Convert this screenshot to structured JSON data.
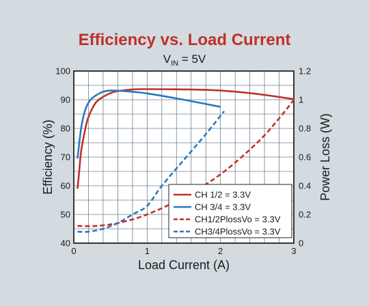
{
  "chart_data": {
    "type": "line",
    "title": "Efficiency vs. Load Current",
    "subtitle_main": "V",
    "subtitle_sub": "IN",
    "subtitle_rest": " = 5V",
    "xlabel": "Load Current (A)",
    "ylabel_left": "Efficiency (%)",
    "ylabel_right": "Power Loss (W)",
    "xlim": [
      0,
      3
    ],
    "ylim_left": [
      40,
      100
    ],
    "ylim_right": [
      0,
      1.2
    ],
    "x_ticks": [
      "0",
      "1",
      "2",
      "3"
    ],
    "y_left_ticks": [
      "40",
      "50",
      "60",
      "70",
      "80",
      "90",
      "100"
    ],
    "y_right_ticks": [
      "0",
      "0.2",
      "0.4",
      "0.6",
      "0.8",
      "1",
      "1.2"
    ],
    "grid": true,
    "legend_position": "bottom-right",
    "colors": {
      "red": "#c0302a",
      "blue": "#2a78bd",
      "title": "#c0302a"
    },
    "series": [
      {
        "name": "CH 1/2 = 3.3V",
        "axis": "left",
        "color": "#c0302a",
        "style": "solid",
        "points": [
          [
            0.05,
            59
          ],
          [
            0.07,
            64
          ],
          [
            0.1,
            72
          ],
          [
            0.15,
            79
          ],
          [
            0.2,
            84
          ],
          [
            0.3,
            89
          ],
          [
            0.4,
            91
          ],
          [
            0.5,
            92.3
          ],
          [
            0.6,
            93
          ],
          [
            0.8,
            93.6
          ],
          [
            1.0,
            93.7
          ],
          [
            1.5,
            93.6
          ],
          [
            2.0,
            93.2
          ],
          [
            2.5,
            92
          ],
          [
            3.0,
            90.2
          ]
        ]
      },
      {
        "name": "CH 3/4 = 3.3V",
        "axis": "left",
        "color": "#2a78bd",
        "style": "solid",
        "points": [
          [
            0.05,
            69.5
          ],
          [
            0.1,
            80
          ],
          [
            0.15,
            86
          ],
          [
            0.2,
            89
          ],
          [
            0.25,
            90.5
          ],
          [
            0.3,
            91.5
          ],
          [
            0.4,
            92.8
          ],
          [
            0.5,
            93.2
          ],
          [
            0.7,
            93
          ],
          [
            1.0,
            92.2
          ],
          [
            1.5,
            90
          ],
          [
            2.0,
            87.5
          ]
        ]
      },
      {
        "name": "CH1/2PlossVo = 3.3V",
        "axis": "right",
        "color": "#c0302a",
        "style": "dashed",
        "points": [
          [
            0.05,
            0.12
          ],
          [
            0.3,
            0.12
          ],
          [
            0.6,
            0.14
          ],
          [
            1.0,
            0.2
          ],
          [
            1.5,
            0.32
          ],
          [
            2.0,
            0.48
          ],
          [
            2.5,
            0.7
          ],
          [
            2.8,
            0.87
          ],
          [
            3.0,
            1.0
          ]
        ]
      },
      {
        "name": "CH3/4PlossVo = 3.3V",
        "axis": "right",
        "color": "#2a78bd",
        "style": "dashed",
        "points": [
          [
            0.05,
            0.08
          ],
          [
            0.2,
            0.08
          ],
          [
            0.4,
            0.1
          ],
          [
            0.6,
            0.14
          ],
          [
            0.8,
            0.2
          ],
          [
            1.0,
            0.26
          ],
          [
            1.2,
            0.4
          ],
          [
            1.5,
            0.58
          ],
          [
            1.8,
            0.76
          ],
          [
            2.05,
            0.92
          ]
        ]
      }
    ]
  }
}
